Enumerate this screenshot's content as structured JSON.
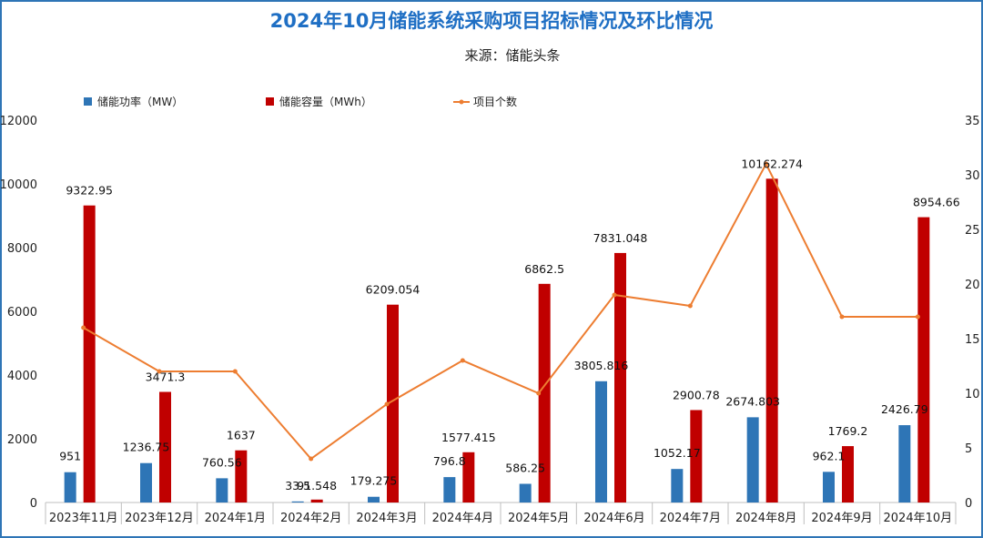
{
  "chart_data": {
    "type": "bar",
    "title": "2024年10月储能系统采购项目招标情况及环比情况",
    "subtitle": "来源：储能头条",
    "categories": [
      "2023年11月",
      "2023年12月",
      "2024年1月",
      "2024年2月",
      "2024年3月",
      "2024年4月",
      "2024年5月",
      "2024年6月",
      "2024年7月",
      "2024年8月",
      "2024年9月",
      "2024年10月"
    ],
    "series": [
      {
        "name": "储能功率（MW）",
        "type": "bar",
        "axis": "left",
        "color": "#2e75b6",
        "values": [
          951,
          1236.75,
          760.56,
          33.5,
          179.275,
          796.8,
          586.25,
          3805.816,
          1052.17,
          2674.803,
          962.1,
          2426.79
        ],
        "labels": [
          "951",
          "1236.75",
          "760.56",
          "33.5",
          "179.275",
          "796.8",
          "586.25",
          "3805.816",
          "1052.17",
          "2674.803",
          "962.1",
          "2426.79"
        ]
      },
      {
        "name": "储能容量（MWh）",
        "type": "bar",
        "axis": "left",
        "color": "#c00000",
        "values": [
          9322.95,
          3471.3,
          1637,
          91.548,
          6209.054,
          1577.415,
          6862.5,
          7831.048,
          2900.78,
          10162.274,
          1769.2,
          8954.66
        ],
        "labels": [
          "9322.95",
          "3471.3",
          "1637",
          "91.548",
          "6209.054",
          "1577.415",
          "6862.5",
          "7831.048",
          "2900.78",
          "10162.274",
          "1769.2",
          "8954.66"
        ]
      },
      {
        "name": "项目个数",
        "type": "line",
        "axis": "right",
        "color": "#ed7d31",
        "values": [
          16,
          12,
          12,
          4,
          9,
          13,
          10,
          19,
          18,
          31,
          17,
          17
        ]
      }
    ],
    "y_left": {
      "min": 0,
      "max": 12000,
      "ticks": [
        "0",
        "2000",
        "4000",
        "6000",
        "8000",
        "10000",
        "12000"
      ]
    },
    "y_right": {
      "min": 0,
      "max": 35,
      "ticks": [
        "0",
        "5",
        "10",
        "15",
        "20",
        "25",
        "30",
        "35"
      ]
    },
    "legend": "top-left",
    "grid": false
  }
}
